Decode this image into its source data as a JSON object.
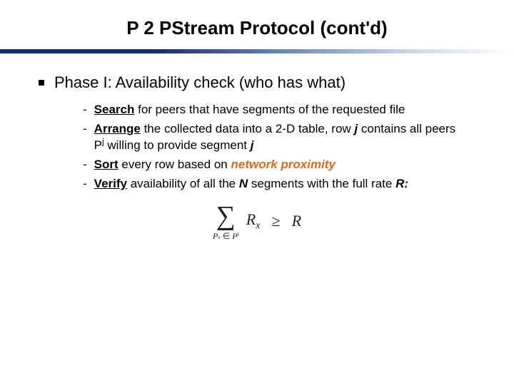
{
  "title": "P 2 PStream Protocol (cont'd)",
  "phase": "Phase I: Availability check (who has what)",
  "items": [
    {
      "lead": "Search",
      "rest": " for peers that have segments of the requested file"
    },
    {
      "lead": "Arrange",
      "rest_pre": " the collected data into a 2-D table, row ",
      "j1": "j",
      "rest_mid": " contains all peers P",
      "sup": "j",
      "rest_post": " willing to provide segment ",
      "j2": "j"
    },
    {
      "lead": "Sort",
      "rest_pre": " every row based on ",
      "emph": "network proximity"
    },
    {
      "lead": "Verify",
      "rest_pre": " availability of all the ",
      "N": "N",
      "rest_mid": " segments with the full rate ",
      "R": "R:"
    }
  ],
  "equation": {
    "sum_sub_left": "P",
    "sum_sub_x": "x",
    "sum_sub_in": " ∈ ",
    "sum_sub_right": "P",
    "sum_sub_sup": "j",
    "term": "R",
    "term_sub": "x",
    "op": "≥",
    "rhs": "R"
  },
  "colors": {
    "accent": "#d96b1a",
    "rule_dark": "#1a2a6c"
  }
}
